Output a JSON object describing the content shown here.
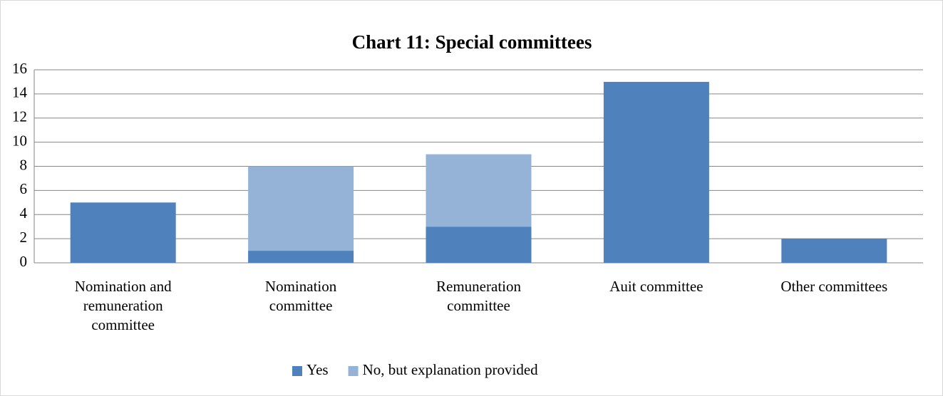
{
  "chart_data": {
    "type": "bar",
    "stacked": true,
    "title": "Chart 11: Special committees",
    "categories": [
      "Nomination and remuneration committee",
      "Nomination committee",
      "Remuneration committee",
      "Auit committee",
      "Other committees"
    ],
    "series": [
      {
        "name": "Yes",
        "color": "#4f81bd",
        "values": [
          5,
          1,
          3,
          15,
          2
        ]
      },
      {
        "name": "No, but explanation provided",
        "color": "#95b3d7",
        "values": [
          0,
          7,
          6,
          0,
          0
        ]
      }
    ],
    "ylim": [
      0,
      16
    ],
    "yticks": [
      0,
      2,
      4,
      6,
      8,
      10,
      12,
      14,
      16
    ],
    "grid": true,
    "legend": "bottom"
  }
}
